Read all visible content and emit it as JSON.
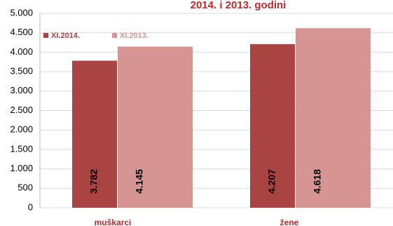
{
  "chart_data": {
    "type": "bar",
    "title": "2014. i 2013. godini",
    "categories": [
      "muškarci",
      "žene"
    ],
    "series": [
      {
        "name": "XI.2014.",
        "color": "#a94442",
        "values": [
          3782,
          4207
        ],
        "value_labels": [
          "3.782",
          "4.207"
        ]
      },
      {
        "name": "XI.2013.",
        "color": "#d69593",
        "values": [
          4145,
          4618
        ],
        "value_labels": [
          "4.145",
          "4.618"
        ]
      }
    ],
    "ylim": [
      0,
      5000
    ],
    "yticks": [
      0,
      500,
      {
        "value": 1000,
        "label": "1.000"
      },
      {
        "value": 1500,
        "label": "1.500"
      },
      {
        "value": 2000,
        "label": "2.000"
      },
      {
        "value": 2500,
        "label": "2.500"
      },
      {
        "value": 3000,
        "label": "3.000"
      },
      {
        "value": 3500,
        "label": "3.500"
      },
      {
        "value": 4000,
        "label": "4.000"
      },
      {
        "value": 4500,
        "label": "4.500"
      },
      {
        "value": 5000,
        "label": "5.000"
      }
    ],
    "grid": true,
    "legend": "top-left"
  }
}
